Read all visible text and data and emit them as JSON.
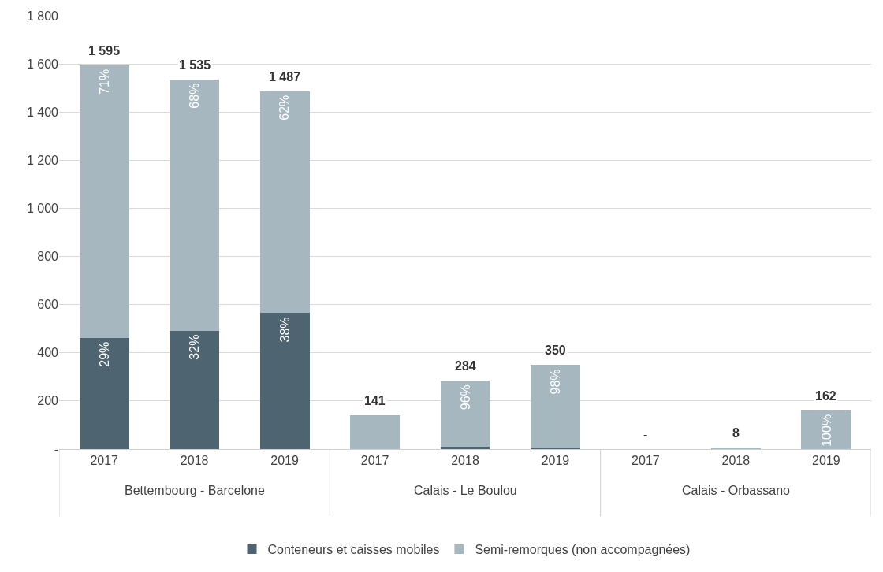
{
  "chart_data": {
    "type": "bar",
    "stacked": true,
    "categories": [
      "2017",
      "2018",
      "2019",
      "2017",
      "2018",
      "2019",
      "2017",
      "2018",
      "2019"
    ],
    "annotations": [
      "Bettembourg - Barcelone",
      "Calais - Le Boulou",
      "Calais - Orbassano",
      {
        "text": "29%",
        "x": "2017",
        "y": 463
      },
      {
        "text": "32%",
        "x": "2018",
        "y": 491
      },
      {
        "text": "38%",
        "x": "2019",
        "y": 565
      },
      {
        "text": "71%",
        "x": "2017",
        "y": 1595
      },
      {
        "text": "68%",
        "x": "2018",
        "y": 1535
      },
      {
        "text": "62%",
        "x": "2019",
        "y": 1487
      },
      {
        "text": "96%",
        "y": 284
      },
      {
        "text": "98%",
        "y": 350
      },
      {
        "text": "100%",
        "y": 162
      }
    ],
    "series": [
      {
        "name": "Conteneurs et caisses mobiles",
        "color": "#4e6470",
        "values": [
          463,
          491,
          565,
          0,
          11,
          7,
          0,
          0,
          0
        ]
      },
      {
        "name": "Semi-remorques (non accompagnées)",
        "color": "#a6b7c0",
        "values": [
          1132,
          1044,
          922,
          141,
          273,
          343,
          0,
          8,
          162
        ]
      }
    ],
    "totals": [
      "1 595",
      "1 535",
      "1 487",
      "141",
      "284",
      "350",
      "-",
      "8",
      "162"
    ],
    "ylim": [
      0,
      1800
    ],
    "yticks": [
      {
        "value": 0,
        "label": "-"
      },
      200,
      400,
      600,
      800,
      {
        "value": 1000,
        "label": "1 000"
      },
      {
        "value": 1200,
        "label": "1 200"
      },
      {
        "value": 1400,
        "label": "1 400"
      },
      {
        "value": 1600,
        "label": "1 600"
      },
      {
        "value": 1800,
        "label": "1 800"
      }
    ],
    "grid": "y",
    "legend": "bottom"
  }
}
